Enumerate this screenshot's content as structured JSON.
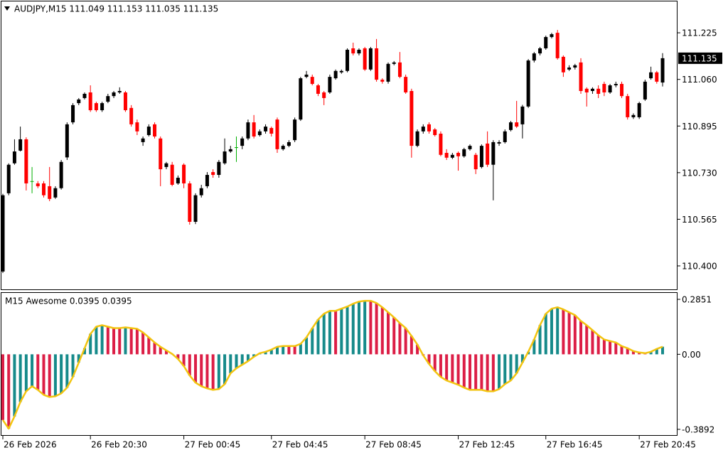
{
  "chart_data": [
    {
      "type": "candlestick",
      "title": "AUDJPY,M15  111.049 111.153 111.035 111.135",
      "up_color": "#000000",
      "down_color": "#ff0000",
      "doji_color": "#00b000",
      "open": [
        110.38,
        110.657,
        110.763,
        110.808,
        110.848,
        110.7,
        110.692,
        110.692,
        110.682,
        110.642,
        110.675,
        110.784,
        110.908,
        110.976,
        110.994,
        111.014,
        110.976,
        110.951,
        110.981,
        111.001,
        111.014,
        111.014,
        110.959,
        110.908,
        110.838,
        110.863,
        110.901,
        110.851,
        110.75,
        110.758,
        110.692,
        110.758,
        110.692,
        110.556,
        110.65,
        110.682,
        110.732,
        110.722,
        110.763,
        110.805,
        110.82,
        110.825,
        110.851,
        110.908,
        110.863,
        110.876,
        110.888,
        110.918,
        110.813,
        110.825,
        110.845,
        110.918,
        111.069,
        111.069,
        111.039,
        111.014,
        111.014,
        111.064,
        111.085,
        111.09,
        111.17,
        111.152,
        111.17,
        111.095,
        111.17,
        111.059,
        111.052,
        111.115,
        111.12,
        111.069,
        111.019,
        110.825,
        110.876,
        110.901,
        110.883,
        110.868,
        110.8,
        110.783,
        110.8,
        110.788,
        110.813,
        110.793,
        110.75,
        110.833,
        110.758,
        110.833,
        110.838,
        110.881,
        110.908,
        110.901,
        110.964,
        111.127,
        111.152,
        111.17,
        111.21,
        111.225,
        111.14,
        111.095,
        111.102,
        111.12,
        111.027,
        111.019,
        111.027,
        111.044,
        111.014,
        111.039,
        111.044,
        111.001,
        110.926,
        110.926,
        110.989,
        111.064,
        111.085,
        111.049
      ],
      "high": [
        110.655,
        110.763,
        110.848,
        110.893,
        110.855,
        110.75,
        110.7,
        110.7,
        110.75,
        110.682,
        110.775,
        110.908,
        110.976,
        110.994,
        111.014,
        111.039,
        110.981,
        110.981,
        111.009,
        111.019,
        111.032,
        111.019,
        110.969,
        110.918,
        110.858,
        110.901,
        110.908,
        110.858,
        110.768,
        110.768,
        110.72,
        110.763,
        110.7,
        110.657,
        110.687,
        110.732,
        110.742,
        110.775,
        110.851,
        110.825,
        110.858,
        110.858,
        110.918,
        110.934,
        110.883,
        110.901,
        110.893,
        110.925,
        110.83,
        110.845,
        110.925,
        111.069,
        111.09,
        111.077,
        111.044,
        111.019,
        111.077,
        111.095,
        111.095,
        111.17,
        111.19,
        111.17,
        111.175,
        111.175,
        111.203,
        111.064,
        111.12,
        111.125,
        111.157,
        111.077,
        111.027,
        110.883,
        110.901,
        110.908,
        110.888,
        110.876,
        110.813,
        110.8,
        110.805,
        110.818,
        110.83,
        110.8,
        110.83,
        110.876,
        110.845,
        110.845,
        110.883,
        110.913,
        110.984,
        110.97,
        111.132,
        111.157,
        111.175,
        111.215,
        111.225,
        111.235,
        111.145,
        111.11,
        111.115,
        111.135,
        111.032,
        111.032,
        111.039,
        111.052,
        111.044,
        111.052,
        111.052,
        111.009,
        110.94,
        110.981,
        111.059,
        111.105,
        111.09,
        111.153
      ],
      "low": [
        110.375,
        110.65,
        110.758,
        110.805,
        110.667,
        110.657,
        110.675,
        110.642,
        110.629,
        110.637,
        110.67,
        110.775,
        110.901,
        110.969,
        110.989,
        110.945,
        110.945,
        110.945,
        110.976,
        110.994,
        111.009,
        110.945,
        110.893,
        110.863,
        110.825,
        110.858,
        110.851,
        110.682,
        110.742,
        110.682,
        110.687,
        110.675,
        110.546,
        110.548,
        110.642,
        110.675,
        110.712,
        110.712,
        110.758,
        110.8,
        110.768,
        110.813,
        110.845,
        110.851,
        110.858,
        110.868,
        110.858,
        110.8,
        110.808,
        110.82,
        110.838,
        110.913,
        111.064,
        111.039,
        111.001,
        110.969,
        111.009,
        111.059,
        111.08,
        111.085,
        111.145,
        111.145,
        111.09,
        111.09,
        111.052,
        111.045,
        111.045,
        111.11,
        111.064,
        111.009,
        110.783,
        110.82,
        110.868,
        110.868,
        110.858,
        110.788,
        110.775,
        110.778,
        110.737,
        110.783,
        110.808,
        110.725,
        110.745,
        110.75,
        110.632,
        110.825,
        110.833,
        110.876,
        110.888,
        110.851,
        110.959,
        111.12,
        111.145,
        111.165,
        111.205,
        111.13,
        111.069,
        111.09,
        111.095,
        111.009,
        110.964,
        111.009,
        110.994,
        111.001,
        111.009,
        111.032,
        110.994,
        110.918,
        110.92,
        110.92,
        110.984,
        111.059,
        111.045,
        111.035
      ],
      "close": [
        110.65,
        110.758,
        110.805,
        110.848,
        110.692,
        110.7,
        110.682,
        110.65,
        110.637,
        110.675,
        110.768,
        110.901,
        110.969,
        110.989,
        111.009,
        110.951,
        110.951,
        110.976,
        111.001,
        111.014,
        111.019,
        110.951,
        110.901,
        110.876,
        110.851,
        110.893,
        110.858,
        110.742,
        110.763,
        110.687,
        110.712,
        110.692,
        110.556,
        110.65,
        110.675,
        110.722,
        110.722,
        110.768,
        110.805,
        110.813,
        110.82,
        110.851,
        110.908,
        110.858,
        110.876,
        110.893,
        110.868,
        110.813,
        110.825,
        110.838,
        110.918,
        111.064,
        111.077,
        111.044,
        111.009,
        110.994,
        111.069,
        111.09,
        111.09,
        111.165,
        111.152,
        111.165,
        111.095,
        111.17,
        111.059,
        111.052,
        111.115,
        111.12,
        111.069,
        111.014,
        110.825,
        110.876,
        110.893,
        110.876,
        110.863,
        110.793,
        110.783,
        110.793,
        110.788,
        110.813,
        110.825,
        110.742,
        110.825,
        110.758,
        110.838,
        110.838,
        110.876,
        110.908,
        110.893,
        110.964,
        111.127,
        111.152,
        111.17,
        111.21,
        111.22,
        111.135,
        111.085,
        111.102,
        111.11,
        111.019,
        111.014,
        111.027,
        111.009,
        111.014,
        111.039,
        111.044,
        111.001,
        110.926,
        110.934,
        110.976,
        111.052,
        111.085,
        111.052,
        111.135
      ],
      "ylim": [
        110.317,
        111.336
      ],
      "yticks": [
        111.225,
        {
          "value": 111.06,
          "label": "111.060"
        },
        110.895,
        {
          "value": 110.73,
          "label": "110.730"
        },
        110.565,
        {
          "value": 110.4,
          "label": "110.400"
        }
      ]
    },
    {
      "type": "oscillator",
      "title": "M15 Awesome 0.0395 0.0395",
      "up_color": "#168a8a",
      "down_color": "#dc1e46",
      "line_color": "#f2c40f",
      "values": [
        -0.3408,
        -0.3855,
        -0.3222,
        -0.2477,
        -0.1918,
        -0.1658,
        -0.1844,
        -0.2105,
        -0.2216,
        -0.2179,
        -0.203,
        -0.1732,
        -0.1173,
        -0.0428,
        0.0317,
        0.1062,
        0.1434,
        0.1509,
        0.1434,
        0.136,
        0.136,
        0.1397,
        0.136,
        0.1322,
        0.1136,
        0.0875,
        0.0615,
        0.0391,
        0.0205,
        0.0019,
        -0.0242,
        -0.0615,
        -0.1099,
        -0.1471,
        -0.1658,
        -0.1769,
        -0.1844,
        -0.1806,
        -0.1546,
        -0.0987,
        -0.0726,
        -0.054,
        -0.0354,
        -0.013,
        0.0056,
        0.013,
        0.0242,
        0.0391,
        0.0428,
        0.0428,
        0.0428,
        0.054,
        0.0875,
        0.136,
        0.1807,
        0.2105,
        0.2254,
        0.2254,
        0.2365,
        0.2477,
        0.2626,
        0.2736,
        0.2775,
        0.2775,
        0.2663,
        0.244,
        0.2179,
        0.1918,
        0.162,
        0.136,
        0.095,
        0.0503,
        -0.0056,
        -0.0503,
        -0.0875,
        -0.1173,
        -0.136,
        -0.1471,
        -0.1583,
        -0.1732,
        -0.1844,
        -0.1844,
        -0.1844,
        -0.1918,
        -0.1918,
        -0.1806,
        -0.1546,
        -0.136,
        -0.0987,
        -0.0428,
        0.013,
        0.0764,
        0.1509,
        0.2105,
        0.2365,
        0.244,
        0.2328,
        0.2179,
        0.203,
        0.1732,
        0.1509,
        0.1248,
        0.0987,
        0.0764,
        0.0689,
        0.0615,
        0.0428,
        0.0317,
        0.0168,
        0.0093,
        0.0056,
        0.013,
        0.0279,
        0.0395
      ],
      "ylim": [
        -0.4191,
        0.3185
      ],
      "yticks": [
        0.2851,
        {
          "value": 0,
          "label": "0.00"
        },
        -0.3892
      ],
      "xticks": [
        {
          "value": 0,
          "label": "26 Feb 2026"
        },
        {
          "value": 15,
          "label": "26 Feb 20:30"
        },
        {
          "value": 31,
          "label": "27 Feb 00:45"
        },
        {
          "value": 46,
          "label": "27 Feb 04:45"
        },
        {
          "value": 62,
          "label": "27 Feb 08:45"
        },
        {
          "value": 78,
          "label": "27 Feb 12:45"
        },
        {
          "value": 93,
          "label": "27 Feb 16:45"
        },
        {
          "value": 109,
          "label": "27 Feb 20:45"
        }
      ]
    }
  ]
}
